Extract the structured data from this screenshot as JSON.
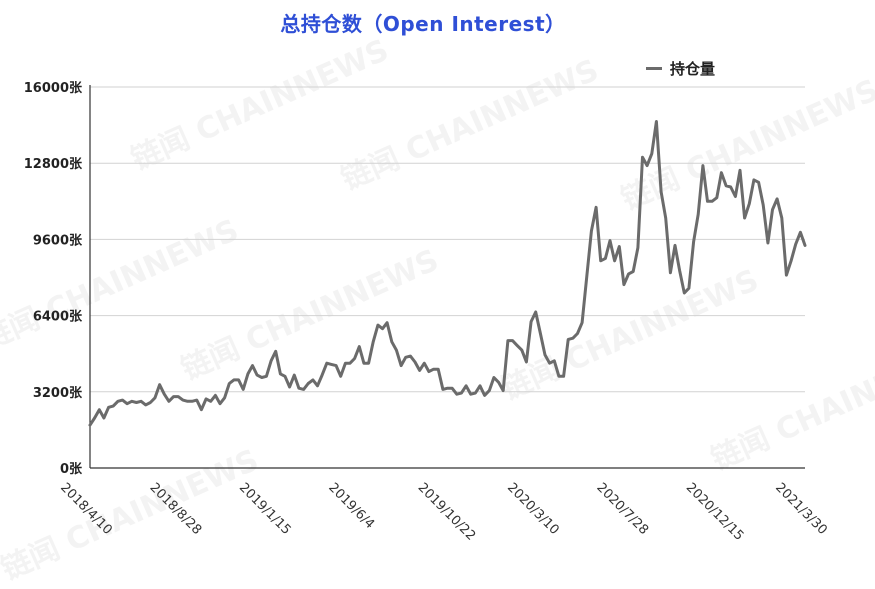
{
  "chart_data": {
    "type": "line",
    "title": "总持仓数（Open Interest）",
    "xlabel": "",
    "ylabel": "",
    "ylim": [
      0,
      16000
    ],
    "y_ticks": [
      "0张",
      "3200张",
      "6400张",
      "9600张",
      "12800张",
      "16000张"
    ],
    "x_ticks": [
      "2018/4/10",
      "2018/8/28",
      "2019/1/15",
      "2019/6/4",
      "2019/10/22",
      "2020/3/10",
      "2020/7/28",
      "2020/12/15",
      "2021/3/30"
    ],
    "grid": true,
    "legend_position": "top-right",
    "series": [
      {
        "name": "持仓量",
        "color": "#6b6b6b",
        "values": [
          1800,
          2100,
          2450,
          2100,
          2550,
          2600,
          2800,
          2850,
          2700,
          2800,
          2750,
          2800,
          2650,
          2750,
          2950,
          3500,
          3100,
          2800,
          3000,
          3000,
          2850,
          2800,
          2800,
          2850,
          2450,
          2900,
          2800,
          3050,
          2700,
          2950,
          3550,
          3700,
          3700,
          3300,
          3950,
          4300,
          3900,
          3800,
          3850,
          4500,
          4900,
          3950,
          3850,
          3400,
          3900,
          3350,
          3300,
          3550,
          3700,
          3450,
          3900,
          4400,
          4350,
          4300,
          3850,
          4400,
          4400,
          4600,
          5100,
          4400,
          4400,
          5300,
          6000,
          5850,
          6100,
          5300,
          4950,
          4300,
          4650,
          4700,
          4450,
          4100,
          4400,
          4050,
          4150,
          4150,
          3300,
          3350,
          3350,
          3100,
          3150,
          3450,
          3100,
          3150,
          3450,
          3050,
          3250,
          3800,
          3600,
          3250,
          5350,
          5350,
          5150,
          4950,
          4450,
          6150,
          6550,
          5650,
          4750,
          4400,
          4500,
          3850,
          3850,
          5400,
          5450,
          5650,
          6100,
          8050,
          9950,
          10950,
          8700,
          8800,
          9550,
          8700,
          9300,
          7700,
          8150,
          8250,
          9250,
          13050,
          12700,
          13200,
          14550,
          11600,
          10500,
          8200,
          9350,
          8300,
          7350,
          7550,
          9500,
          10650,
          12700,
          11200,
          11200,
          11350,
          12400,
          11850,
          11800,
          11400,
          12500,
          10500,
          11100,
          12100,
          12000,
          11050,
          9450,
          10850,
          11300,
          10500,
          8100,
          8700,
          9400,
          9900,
          9350
        ]
      }
    ]
  }
}
